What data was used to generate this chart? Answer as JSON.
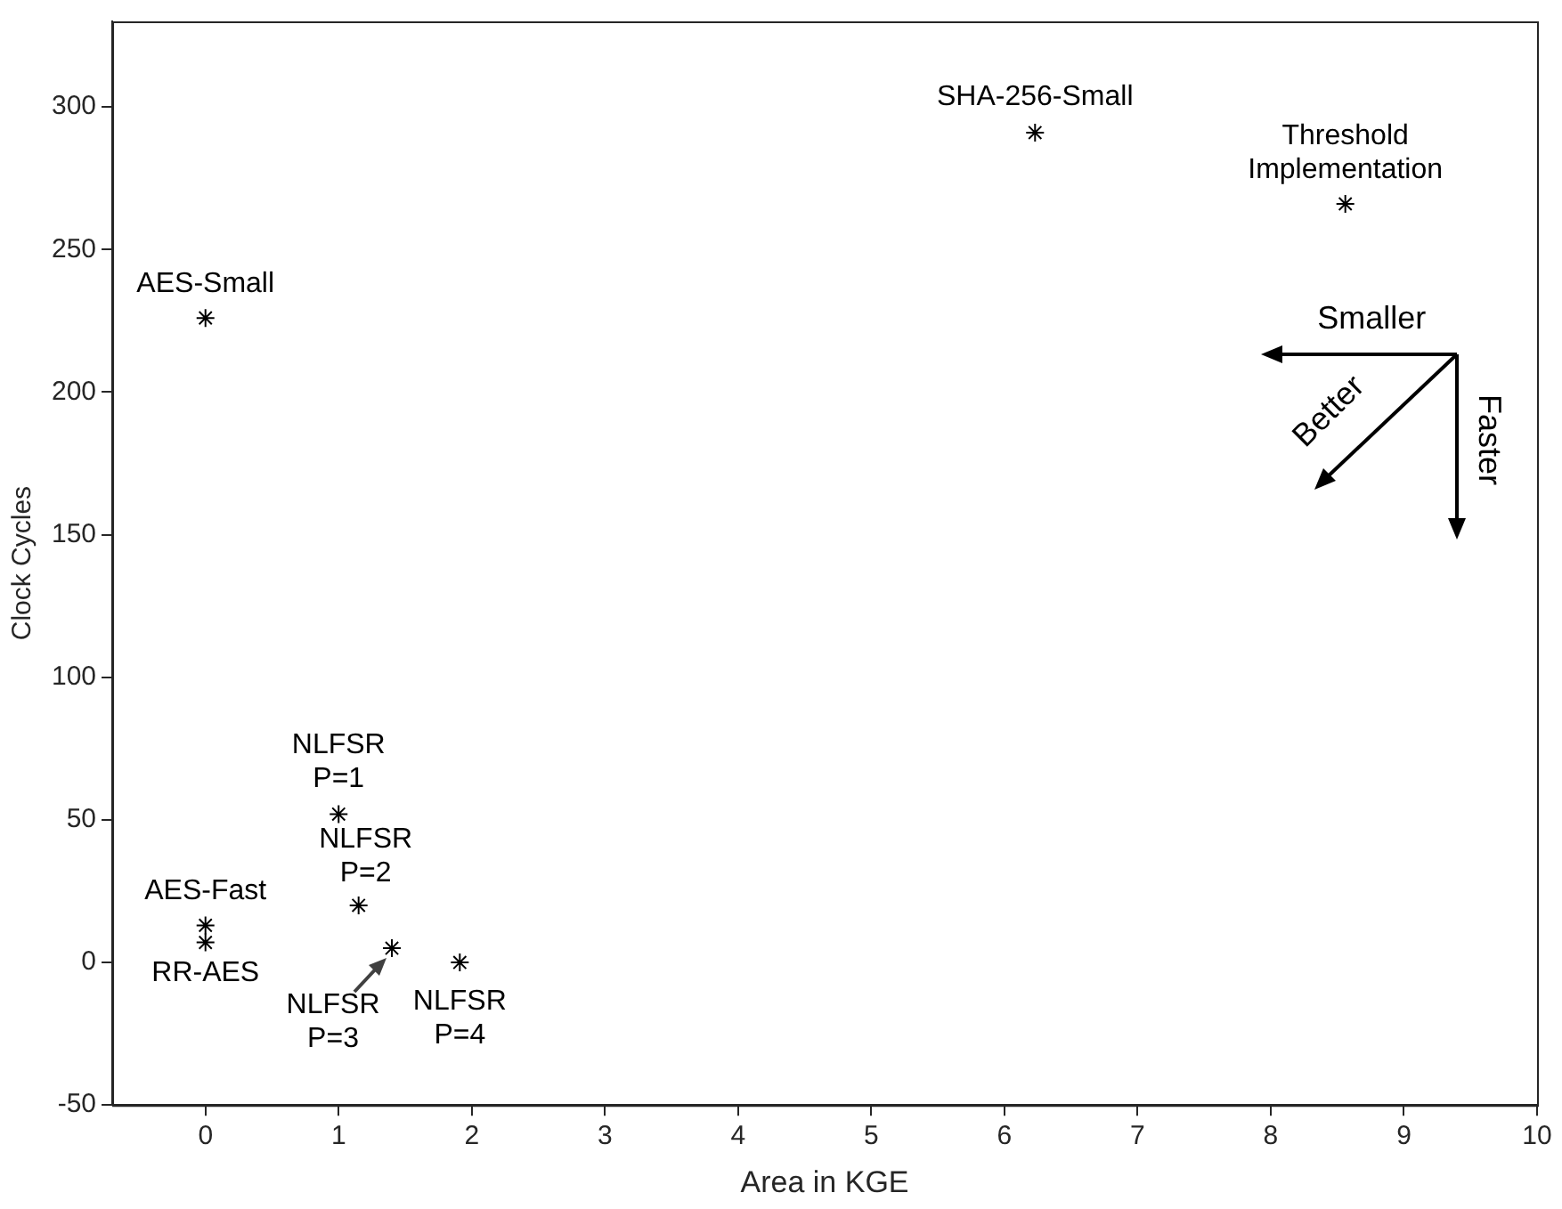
{
  "chart_data": {
    "type": "scatter",
    "xlabel": "Area in KGE",
    "ylabel": "Clock Cycles",
    "x": [
      0,
      6.23,
      8.56,
      1.0,
      1.15,
      1.4,
      1.91,
      0,
      0
    ],
    "values": [
      226,
      291,
      266,
      52,
      20,
      5,
      0,
      13,
      7
    ],
    "color": "#000000",
    "marker": "cross",
    "grid": false,
    "legend": false,
    "xlim": [
      -0.7,
      10
    ],
    "xticks": [
      0,
      1,
      2,
      3,
      4,
      5,
      6,
      7,
      8,
      9,
      10
    ],
    "ylim": [
      -50,
      330
    ],
    "yticks": [
      -50,
      0,
      50,
      100,
      150,
      200,
      250,
      300
    ],
    "annotations": [
      {
        "text": "AES-Small",
        "x": 0,
        "y": 226
      },
      {
        "text": "SHA-256-Small",
        "x": 6.23,
        "y": 291
      },
      {
        "text": "Threshold\nImplementation",
        "x": 8.56,
        "y": 266
      },
      {
        "text": "NLFSR\nP=1",
        "x": 1.0,
        "y": 52
      },
      {
        "text": "NLFSR\nP=2",
        "x": 1.15,
        "y": 20
      },
      {
        "text": "NLFSR\nP=3",
        "x": 1.4,
        "y": 5
      },
      {
        "text": "NLFSR\nP=4",
        "x": 1.91,
        "y": 0
      },
      {
        "text": "AES-Fast",
        "x": 0,
        "y": 13
      },
      {
        "text": "RR-AES",
        "x": 0,
        "y": 7
      },
      "Smaller",
      "Better",
      "Faster"
    ]
  }
}
